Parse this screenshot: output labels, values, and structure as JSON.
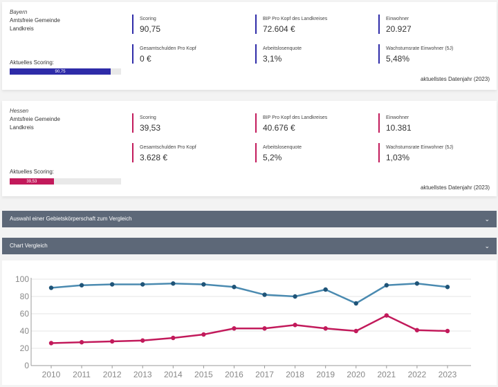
{
  "cards": [
    {
      "region": "Bayern",
      "line1": "Amtsfreie Gemeinde",
      "line2": "Landkreis",
      "score_label": "Aktuelles Scoring:",
      "score_value": "90,75",
      "score_fraction": 0.9075,
      "accent": "#2e2ba8",
      "metrics": [
        {
          "label": "Scoring",
          "value": "90,75"
        },
        {
          "label": "BIP Pro Kopf des Landkreises",
          "value": "72.604 €"
        },
        {
          "label": "Einwohner",
          "value": "20.927"
        },
        {
          "label": "Gesamtschulden Pro Kopf",
          "value": "0 €"
        },
        {
          "label": "Arbeitslosenquote",
          "value": "3,1%"
        },
        {
          "label": "Wachstumsrate Einwohner (5J)",
          "value": "5,48%"
        }
      ],
      "year_note": "aktuellstes Datenjahr (2023)"
    },
    {
      "region": "Hessen",
      "line1": "Amtsfreie Gemeinde",
      "line2": "Landkreis",
      "score_label": "Aktuelles Scoring:",
      "score_value": "39,53",
      "score_fraction": 0.3953,
      "accent": "#c21a5b",
      "metrics": [
        {
          "label": "Scoring",
          "value": "39,53"
        },
        {
          "label": "BIP Pro Kopf des Landkreises",
          "value": "40.676 €"
        },
        {
          "label": "Einwohner",
          "value": "10.381"
        },
        {
          "label": "Gesamtschulden Pro Kopf",
          "value": "3.628 €"
        },
        {
          "label": "Arbeitslosenquote",
          "value": "5,2%"
        },
        {
          "label": "Wachstumsrate Einwohner (5J)",
          "value": "1,03%"
        }
      ],
      "year_note": "aktuellstes Datenjahr (2023)"
    }
  ],
  "accordions": {
    "compare": "Auswahl einer Gebietskörperschaft zum Vergleich",
    "chart": "Chart Vergleich",
    "chevron_icon": "chevron-down-icon"
  },
  "chart_data": {
    "type": "line",
    "x": [
      2010,
      2011,
      2012,
      2013,
      2014,
      2015,
      2016,
      2017,
      2018,
      2019,
      2020,
      2021,
      2022,
      2023
    ],
    "ylim": [
      0,
      100
    ],
    "yticks": [
      0,
      20,
      40,
      60,
      80,
      100
    ],
    "grid": true,
    "series": [
      {
        "color": "#4a8ab0",
        "values": [
          90,
          93,
          94,
          94,
          95,
          94,
          91,
          82,
          80,
          88,
          72,
          93,
          95,
          91
        ]
      },
      {
        "color": "#c21a5b",
        "values": [
          26,
          27,
          28,
          29,
          32,
          36,
          43,
          43,
          47,
          43,
          40,
          58,
          41,
          40
        ]
      }
    ]
  }
}
